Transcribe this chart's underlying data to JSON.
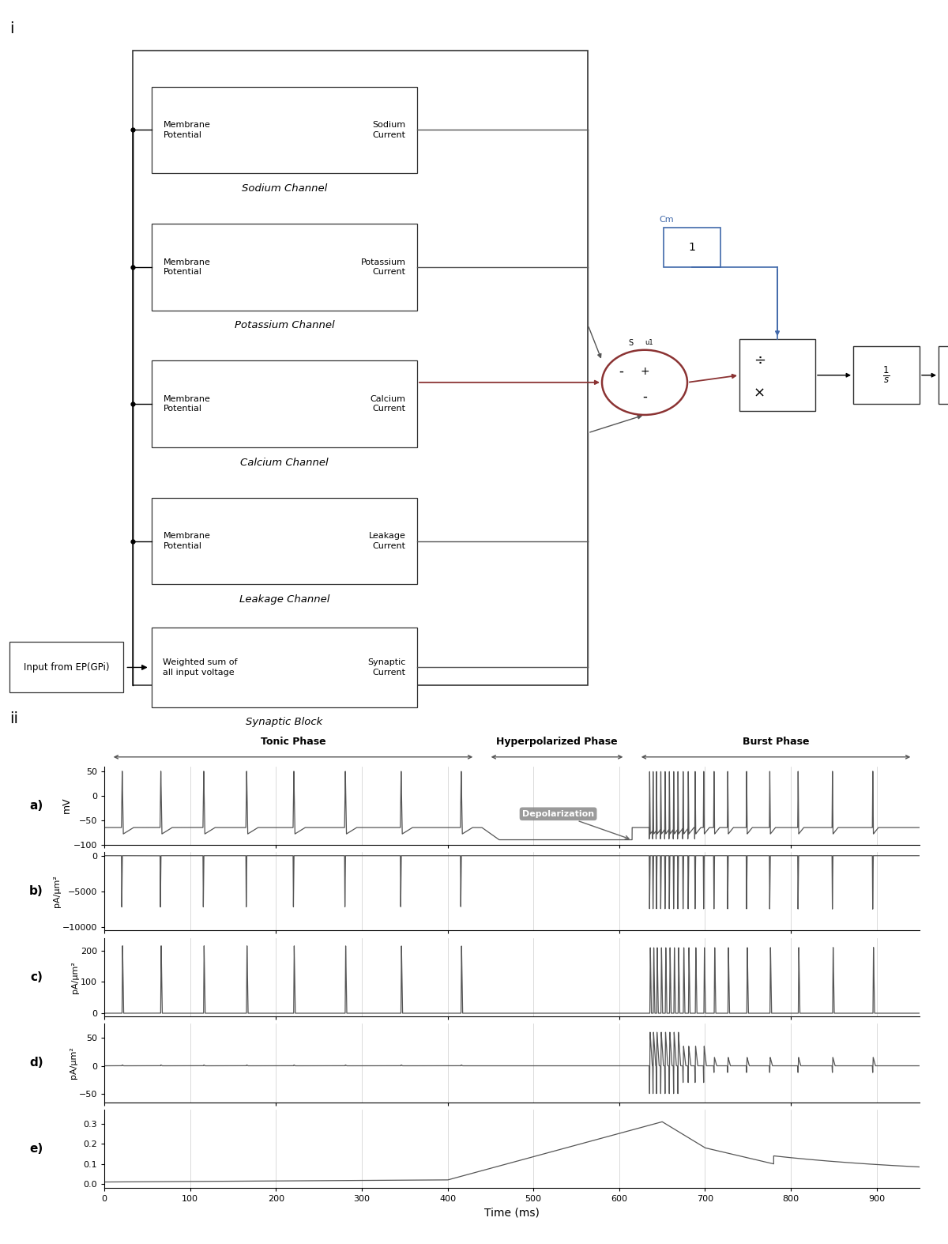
{
  "fig_width": 12.0,
  "fig_height": 15.74,
  "dpi": 100,
  "block_color": "#ffffff",
  "block_edge_color": "#000000",
  "line_color": "#555555",
  "blue_color": "#4169aa",
  "red_color": "#8b2020",
  "label_i": "i",
  "label_ii": "ii",
  "phase_labels": [
    "Tonic Phase",
    "Hyperpolarized Phase",
    "Burst Phase"
  ],
  "subplot_labels": [
    "a)",
    "b)",
    "c)",
    "d)",
    "e)"
  ],
  "ylabel_a": "mV",
  "ylabel_b": "pA/μm²",
  "ylabel_c": "pA/μm²",
  "ylabel_d": "pA/μm²",
  "ylabel_e": "",
  "xlabel": "Time (ms)",
  "ylim_a": [
    -100,
    60
  ],
  "ylim_b": [
    -10500,
    500
  ],
  "ylim_c": [
    -10,
    240
  ],
  "ylim_d": [
    -65,
    75
  ],
  "ylim_e": [
    -0.02,
    0.37
  ],
  "xlim": [
    0,
    950
  ],
  "yticks_a": [
    -100,
    -50,
    0,
    50
  ],
  "yticks_b": [
    -10000,
    -5000,
    0
  ],
  "yticks_c": [
    0,
    100,
    200
  ],
  "yticks_d": [
    -50,
    0,
    50
  ],
  "yticks_e": [
    0,
    0.1,
    0.2,
    0.3
  ],
  "xticks": [
    0,
    100,
    200,
    300,
    400,
    500,
    600,
    700,
    800,
    900
  ],
  "annotation_text": "Depolarization",
  "tonic_end": 440,
  "hyper_end": 615,
  "burst_end": 950
}
